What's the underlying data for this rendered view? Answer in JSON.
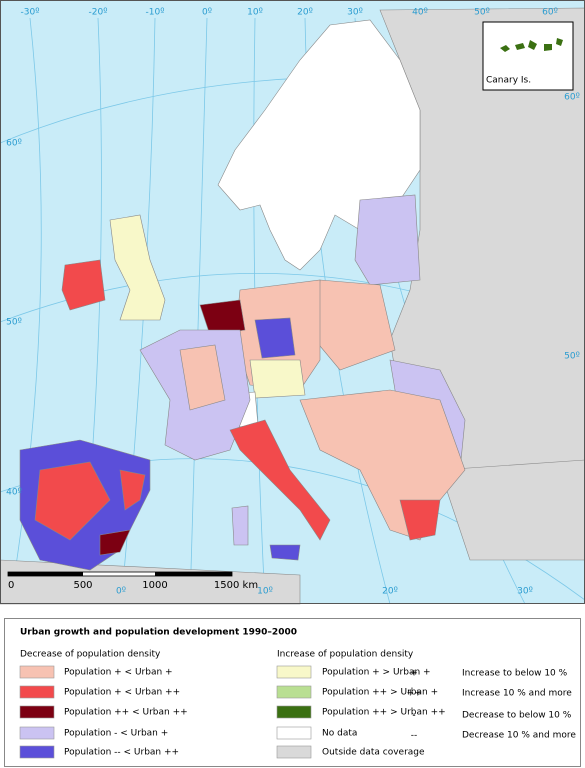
{
  "map": {
    "graticule": {
      "top": [
        "-30º",
        "-20º",
        "-10º",
        "0º",
        "10º",
        "20º",
        "30º",
        "40º",
        "50º",
        "60º"
      ],
      "left": [
        "60º",
        "50º",
        "40º"
      ],
      "right": [
        "60º",
        "50º"
      ],
      "bottom": [
        "0º",
        "10º",
        "20º",
        "30º"
      ]
    },
    "scale": [
      "0",
      "500",
      "1000",
      "1500 km"
    ],
    "inset": "Canary Is."
  },
  "legend": {
    "title": "Urban growth and population development 1990–2000",
    "decrease": {
      "heading": "Decrease of population density",
      "items": [
        {
          "label": "Population + < Urban +",
          "color": "#f7c2b2"
        },
        {
          "label": "Population + < Urban ++",
          "color": "#f24a4c"
        },
        {
          "label": "Population ++ < Urban ++",
          "color": "#7c0012"
        },
        {
          "label": "Population - < Urban +",
          "color": "#cbc3f2"
        },
        {
          "label": "Population -- < Urban ++",
          "color": "#5b4fd9"
        }
      ]
    },
    "increase": {
      "heading": "Increase of population density",
      "items": [
        {
          "label": "Population + > Urban +",
          "color": "#f8f8c9"
        },
        {
          "label": "Population ++ > Urban +",
          "color": "#b9df92"
        },
        {
          "label": "Population ++ > Urban ++",
          "color": "#3b7012"
        },
        {
          "label": "No data",
          "color": "#ffffff"
        },
        {
          "label": "Outside data coverage",
          "color": "#d9d9d9"
        }
      ]
    },
    "symbols": [
      {
        "symbol": "+",
        "label": "Increase to below 10 %"
      },
      {
        "symbol": "++",
        "label": "Increase 10 % and more"
      },
      {
        "symbol": "-",
        "label": "Decrease to below 10 %"
      },
      {
        "symbol": "--",
        "label": "Decrease 10 % and more"
      }
    ]
  }
}
